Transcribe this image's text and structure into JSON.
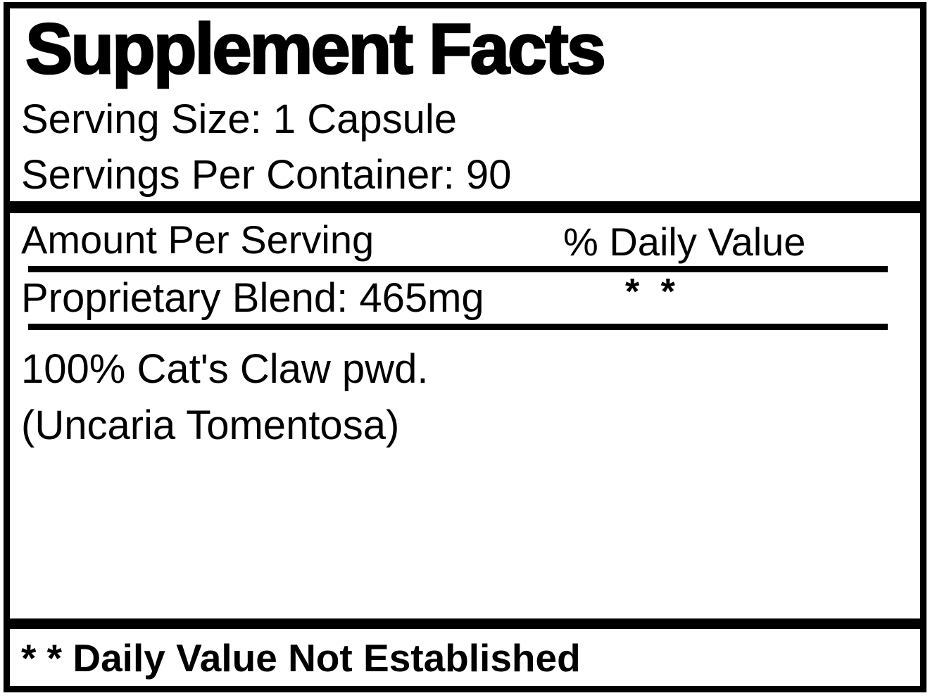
{
  "label": {
    "title": "Supplement Facts",
    "serving_size": "Serving Size: 1 Capsule",
    "servings_per_container": "Servings Per Container: 90",
    "columns": {
      "amount_header": "Amount Per Serving",
      "daily_value_header": "% Daily Value"
    },
    "rows": [
      {
        "name": "Proprietary Blend: 465mg",
        "daily_value": "* *"
      }
    ],
    "ingredients": [
      "100% Cat's Claw pwd.",
      "(Uncaria Tomentosa)"
    ],
    "footnote": "* * Daily Value Not Established",
    "colors": {
      "ink": "#000000",
      "background": "#ffffff"
    }
  }
}
